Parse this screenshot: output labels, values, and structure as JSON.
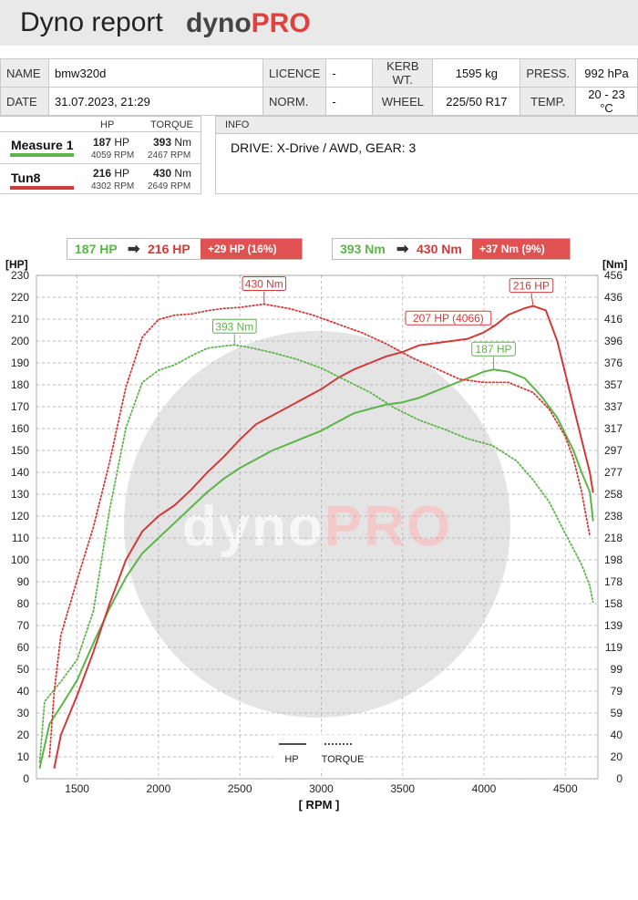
{
  "header": {
    "title": "Dyno report",
    "logo_dyno": "dyno",
    "logo_pro": "PRO"
  },
  "vehicle": {
    "name_label": "NAME",
    "name": "bmw320d",
    "licence_label": "LICENCE",
    "licence": "-",
    "kerb_label": "KERB WT.",
    "kerb": "1595 kg",
    "press_label": "PRESS.",
    "press": "992 hPa",
    "date_label": "DATE",
    "date": "31.07.2023, 21:29",
    "norm_label": "NORM.",
    "norm": "-",
    "wheel_label": "WHEEL",
    "wheel": "225/50 R17",
    "temp_label": "TEMP.",
    "temp": "20 - 23 °C"
  },
  "measures": {
    "hp_header": "HP",
    "torque_header": "TORQUE",
    "hp_unit": "HP",
    "torque_unit": "Nm",
    "rpm_unit": "RPM",
    "rows": [
      {
        "name": "Measure 1",
        "color": "#5cb548",
        "hp": "187",
        "hp_rpm": "4059",
        "torque": "393",
        "torque_rpm": "2467"
      },
      {
        "name": "Tun8",
        "color": "#d23a3a",
        "hp": "216",
        "hp_rpm": "4302",
        "torque": "430",
        "torque_rpm": "2649"
      }
    ]
  },
  "info": {
    "header": "INFO",
    "text": "DRIVE: X-Drive / AWD,  GEAR: 3"
  },
  "comparison": {
    "hp": {
      "from": "187 HP",
      "to": "216 HP",
      "gain": "+29 HP  (16%)"
    },
    "torque": {
      "from": "393 Nm",
      "to": "430 Nm",
      "gain": "+37 Nm  (9%)"
    }
  },
  "chart_data": {
    "type": "line",
    "x_label": "[ RPM ]",
    "y_left_label": "[HP]",
    "y_right_label": "[Nm]",
    "x_ticks": [
      1500,
      2000,
      2500,
      3000,
      3500,
      4000,
      4500
    ],
    "xlim": [
      1250,
      4700
    ],
    "y_left_ticks": [
      0,
      10,
      20,
      30,
      40,
      50,
      60,
      70,
      80,
      90,
      100,
      110,
      120,
      130,
      140,
      150,
      160,
      170,
      180,
      190,
      200,
      210,
      220,
      230
    ],
    "ylim_left": [
      0,
      230
    ],
    "y_right_ticks": [
      0,
      20,
      40,
      59,
      79,
      99,
      119,
      139,
      158,
      178,
      198,
      218,
      238,
      258,
      277,
      297,
      317,
      337,
      357,
      376,
      396,
      416,
      436,
      456
    ],
    "ylim_right": [
      0,
      456
    ],
    "grid": true,
    "watermark": "dynoPRO",
    "legend": {
      "hp": "HP",
      "torque": "TORQUE",
      "position": "bottom-center"
    },
    "series": [
      {
        "name": "Measure 1",
        "quantity": "HP",
        "color": "#5cb548",
        "style": "solid",
        "x": [
          1270,
          1330,
          1400,
          1500,
          1600,
          1700,
          1800,
          1900,
          2000,
          2100,
          2200,
          2300,
          2400,
          2500,
          2600,
          2700,
          2800,
          2900,
          3000,
          3100,
          3200,
          3300,
          3400,
          3500,
          3600,
          3700,
          3800,
          3900,
          4000,
          4059,
          4150,
          4250,
          4350,
          4450,
          4550,
          4600,
          4650,
          4660,
          4670
        ],
        "y": [
          5,
          25,
          33,
          45,
          62,
          78,
          92,
          103,
          110,
          117,
          124,
          131,
          137,
          142,
          146,
          150,
          153,
          156,
          159,
          163,
          167,
          169,
          171,
          172,
          174,
          177,
          180,
          183,
          186,
          187,
          186,
          183,
          175,
          165,
          150,
          140,
          131,
          125,
          118
        ]
      },
      {
        "name": "Tun8",
        "quantity": "HP",
        "color": "#d23a3a",
        "style": "solid",
        "x": [
          1360,
          1400,
          1500,
          1600,
          1700,
          1800,
          1900,
          2000,
          2100,
          2200,
          2300,
          2400,
          2500,
          2600,
          2700,
          2800,
          2900,
          3000,
          3100,
          3200,
          3300,
          3400,
          3500,
          3600,
          3700,
          3800,
          3900,
          4000,
          4066,
          4150,
          4250,
          4302,
          4380,
          4450,
          4500,
          4550,
          4600,
          4650,
          4670
        ],
        "y": [
          5,
          20,
          38,
          58,
          80,
          100,
          113,
          120,
          125,
          132,
          140,
          147,
          155,
          162,
          166,
          170,
          174,
          178,
          183,
          187,
          190,
          193,
          195,
          198,
          199,
          200,
          201,
          204,
          207,
          212,
          215,
          216,
          214,
          200,
          185,
          170,
          155,
          140,
          131
        ]
      },
      {
        "name": "Measure 1",
        "quantity": "TORQUE",
        "color": "#5cb548",
        "style": "dotted",
        "x": [
          1270,
          1300,
          1400,
          1500,
          1600,
          1700,
          1800,
          1900,
          2000,
          2100,
          2200,
          2300,
          2400,
          2467,
          2550,
          2700,
          2850,
          3000,
          3150,
          3300,
          3450,
          3600,
          3750,
          3900,
          4050,
          4200,
          4300,
          4400,
          4500,
          4600,
          4650,
          4670
        ],
        "y": [
          15,
          70,
          88,
          108,
          152,
          244,
          318,
          359,
          370,
          375,
          383,
          390,
          392,
          393,
          391,
          386,
          380,
          372,
          361,
          350,
          336,
          325,
          317,
          308,
          302,
          288,
          271,
          251,
          222,
          194,
          175,
          160
        ]
      },
      {
        "name": "Tun8",
        "quantity": "TORQUE",
        "color": "#d23a3a",
        "style": "dotted",
        "x": [
          1330,
          1360,
          1400,
          1500,
          1600,
          1700,
          1800,
          1900,
          2000,
          2100,
          2200,
          2300,
          2400,
          2500,
          2649,
          2800,
          2950,
          3100,
          3250,
          3400,
          3550,
          3700,
          3850,
          4000,
          4150,
          4300,
          4400,
          4500,
          4550,
          4600,
          4650
        ],
        "y": [
          20,
          80,
          130,
          180,
          228,
          287,
          355,
          400,
          416,
          420,
          421,
          424,
          426,
          427,
          430,
          426,
          420,
          412,
          404,
          394,
          382,
          372,
          362,
          359,
          359,
          350,
          335,
          310,
          290,
          260,
          220
        ]
      }
    ],
    "annotations": [
      {
        "text": "430 Nm",
        "color": "#d23a3a",
        "x": 2649,
        "y_torque": 430
      },
      {
        "text": "393 Nm",
        "color": "#5cb548",
        "x": 2467,
        "y_torque": 393
      },
      {
        "text": "216 HP",
        "color": "#d23a3a",
        "x": 4302,
        "y_hp": 216
      },
      {
        "text": "207 HP (4066)",
        "color": "#d23a3a",
        "x": 4066,
        "y_hp": 207
      },
      {
        "text": "187 HP",
        "color": "#5cb548",
        "x": 4059,
        "y_hp": 187
      }
    ]
  }
}
